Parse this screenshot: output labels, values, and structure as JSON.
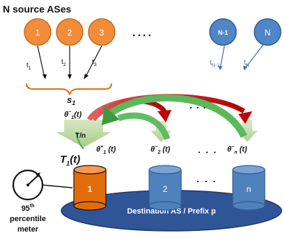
{
  "title": "N source ASes",
  "colors": {
    "source_orange": "#F28C3A",
    "source_blue": "#4F86C6",
    "cyl_orange": "#E36C0A",
    "cyl_blue": "#4F81BD",
    "platform": "#3E6DB5",
    "platform_fill": "#2F5597",
    "brace_orange": "#E36C0A",
    "arrow_red": "#C00000",
    "arrow_green": "#5BB85B",
    "arrow_lightgreen": "#B8D49A"
  },
  "sources": [
    {
      "label": "1",
      "link": "t",
      "link_sub": "1",
      "color": "orange"
    },
    {
      "label": "2",
      "link": "t",
      "link_sub": "2",
      "color": "orange"
    },
    {
      "label": "3",
      "link": "t",
      "link_sub": "3",
      "color": "orange"
    },
    {
      "label": "N-1",
      "link": "t",
      "link_sub": "N-1",
      "color": "blue"
    },
    {
      "label": "N",
      "link": "t",
      "link_sub": "N",
      "color": "blue"
    }
  ],
  "ellipsis": "....",
  "ellipsis_mid": ". . .",
  "aggregate": {
    "s": "s",
    "s_sub": "1"
  },
  "theta_in": {
    "sym": "θ",
    "sup": "−",
    "sub": "1",
    "arg": "(t)"
  },
  "t_over_n": "T/n",
  "T": {
    "sym": "T",
    "sub": "1",
    "arg": "(t)"
  },
  "outflows": [
    {
      "sym": "θ",
      "sup": "+",
      "sub": "1",
      "arg": " (t)"
    },
    {
      "sym": "θ",
      "sup": "−",
      "sub": "2",
      "arg": " (t)"
    },
    {
      "sym": "θ",
      "sup": "−",
      "sub": "n",
      "arg": " (t)"
    }
  ],
  "destinations": [
    {
      "label": "1",
      "color": "orange"
    },
    {
      "label": "2",
      "color": "blue"
    },
    {
      "label": "n",
      "color": "blue"
    }
  ],
  "dest_dots": ". . .",
  "platform_label": "Destination AS / Prefix p",
  "meter": {
    "line1": "95",
    "line1_sup": "th",
    "line2": "percentile",
    "line3": "meter"
  }
}
